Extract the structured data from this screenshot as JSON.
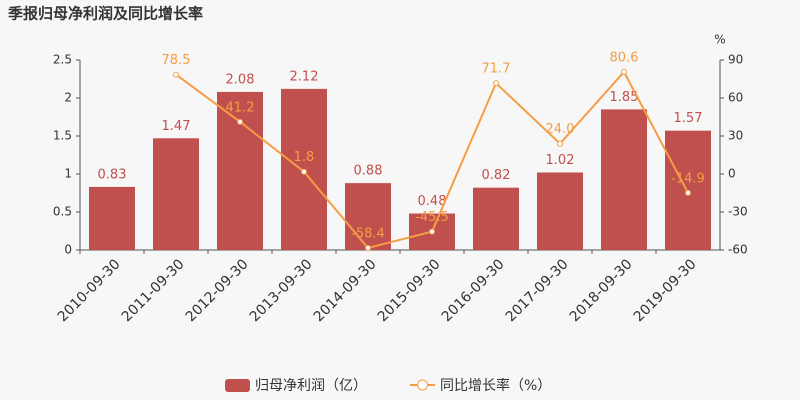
{
  "chart_data": {
    "type": "bar_line",
    "title": "季报归母净利润及同比增长率",
    "y2_label": "%",
    "categories": [
      "2010-09-30",
      "2011-09-30",
      "2012-09-30",
      "2013-09-30",
      "2014-09-30",
      "2015-09-30",
      "2016-09-30",
      "2017-09-30",
      "2018-09-30",
      "2019-09-30"
    ],
    "series": [
      {
        "name": "归母净利润（亿）",
        "type": "bar",
        "color": "#c0504d",
        "axis": "y",
        "values": [
          0.83,
          1.47,
          2.08,
          2.12,
          0.88,
          0.48,
          0.82,
          1.02,
          1.85,
          1.57
        ]
      },
      {
        "name": "同比增长率（%）",
        "type": "line",
        "color": "#f59d46",
        "axis": "y2",
        "values": [
          null,
          78.5,
          41.2,
          1.8,
          -58.4,
          -45.5,
          71.7,
          24.0,
          80.6,
          -14.9
        ],
        "value_labels": [
          null,
          "78.5",
          "41.2",
          "1.8",
          "-58.4",
          "-45.5",
          "71.7",
          "24.0",
          "80.6",
          "-14.9"
        ]
      }
    ],
    "ylim": [
      0,
      2.5
    ],
    "yticks": [
      0,
      0.5,
      1,
      1.5,
      2,
      2.5
    ],
    "y2lim": [
      -60,
      90
    ],
    "y2ticks": [
      -60,
      -30,
      0,
      30,
      60,
      90
    ],
    "legend": "bottom"
  }
}
